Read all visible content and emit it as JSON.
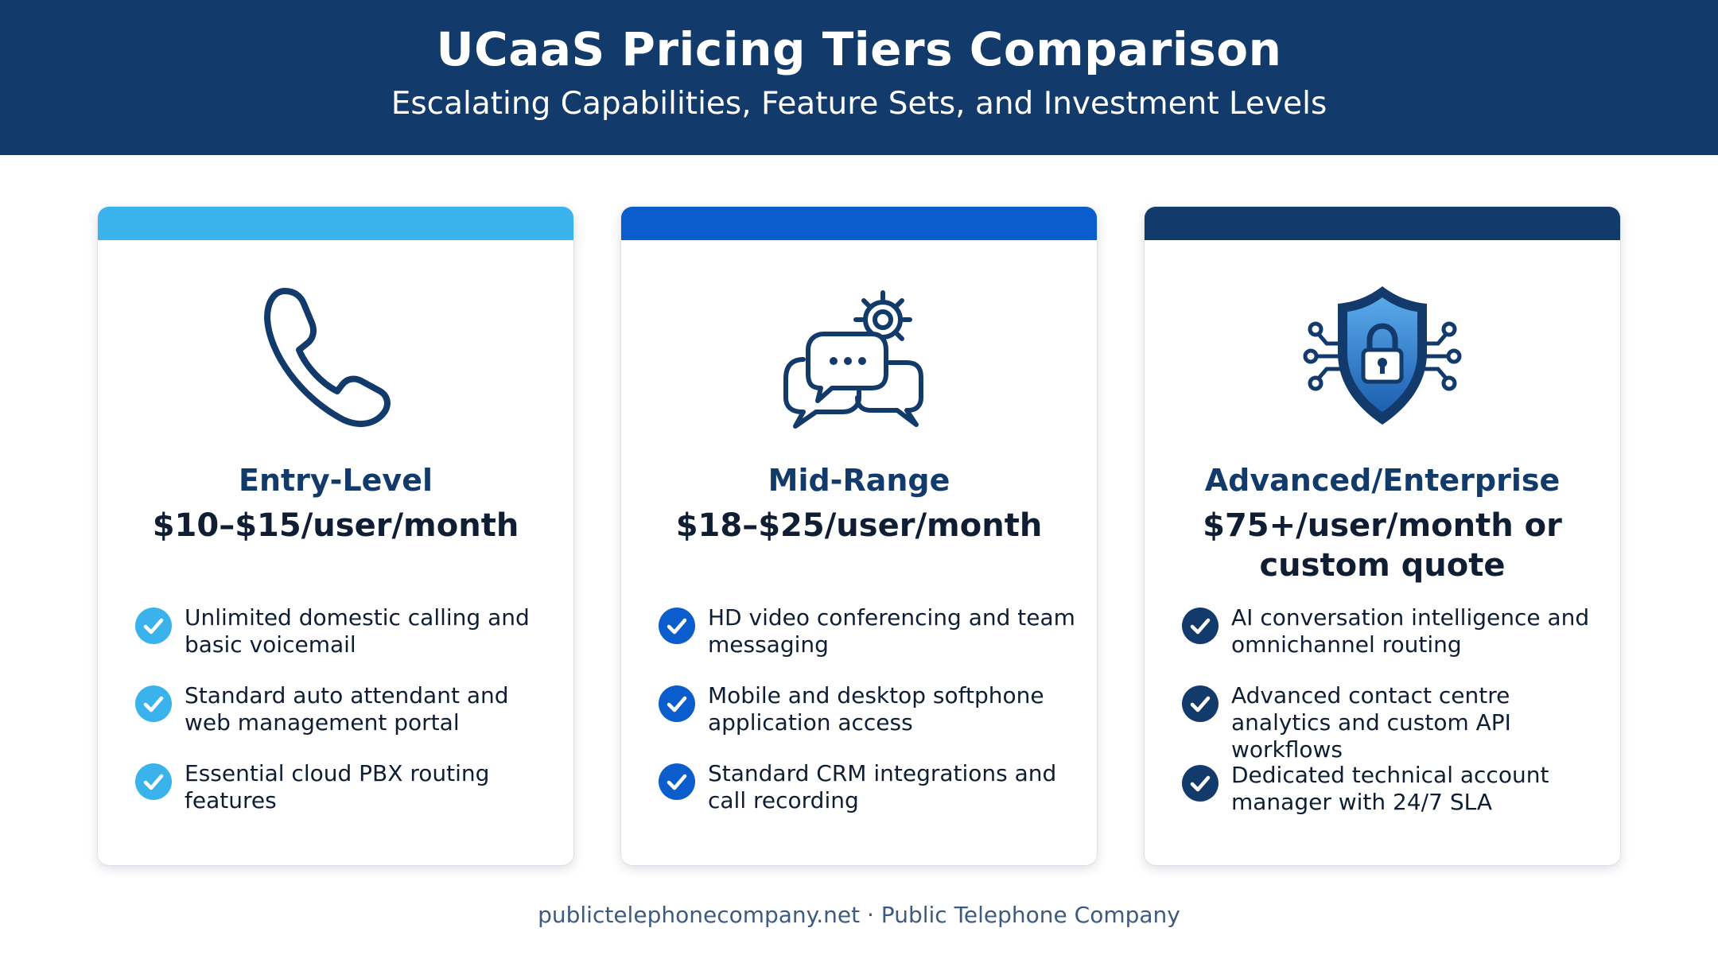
{
  "header": {
    "title": "UCaaS Pricing Tiers Comparison",
    "subtitle": "Escalating Capabilities, Feature Sets, and Investment Levels"
  },
  "colors": {
    "header_bg": "#123b6b",
    "entry_accent": "#3ab3ec",
    "mid_accent": "#0b5ccc",
    "enterprise_accent": "#123b6b"
  },
  "tiers": [
    {
      "icon": "phone-icon",
      "name": "Entry-Level",
      "price": "$10–$15/user/month",
      "features": [
        "Unlimited domestic calling and basic voicemail",
        "Standard auto attendant and web management portal",
        "Essential cloud PBX routing features"
      ]
    },
    {
      "icon": "chat-gear-icon",
      "name": "Mid-Range",
      "price": "$18–$25/user/month",
      "features": [
        "HD video conferencing and team messaging",
        "Mobile and desktop softphone application access",
        "Standard CRM integrations and call recording"
      ]
    },
    {
      "icon": "security-shield-lock-icon",
      "name": "Advanced/Enterprise",
      "price": "$75+/user/month or custom quote",
      "features": [
        "AI conversation intelligence and omnichannel routing",
        "Advanced contact centre analytics and custom API workflows",
        "Dedicated technical account manager with 24/7 SLA"
      ]
    }
  ],
  "footer": {
    "text": "publictelephonecompany.net · Public Telephone Company"
  }
}
